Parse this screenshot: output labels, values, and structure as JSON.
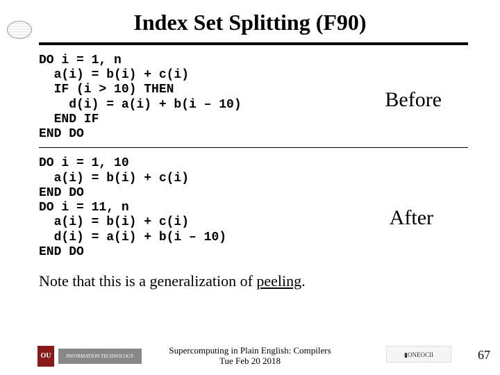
{
  "title": "Index Set Splitting (F90)",
  "before_label": "Before",
  "after_label": "After",
  "code_before": "DO i = 1, n\n  a(i) = b(i) + c(i)\n  IF (i > 10) THEN\n    d(i) = a(i) + b(i – 10)\n  END IF\nEND DO",
  "code_after": "DO i = 1, 10\n  a(i) = b(i) + c(i)\nEND DO\nDO i = 11, n\n  a(i) = b(i) + c(i)\n  d(i) = a(i) + b(i – 10)\nEND DO",
  "note_prefix": "Note that this is a generalization of ",
  "note_link": "peeling",
  "note_suffix": ".",
  "footer_line1": "Supercomputing in Plain English: Compilers",
  "footer_line2": "Tue Feb 20 2018",
  "page_number": "67",
  "logos": {
    "ou": "OU",
    "it": "INFORMATION TECHNOLOGY",
    "onecii": "▮ONEOCII"
  }
}
